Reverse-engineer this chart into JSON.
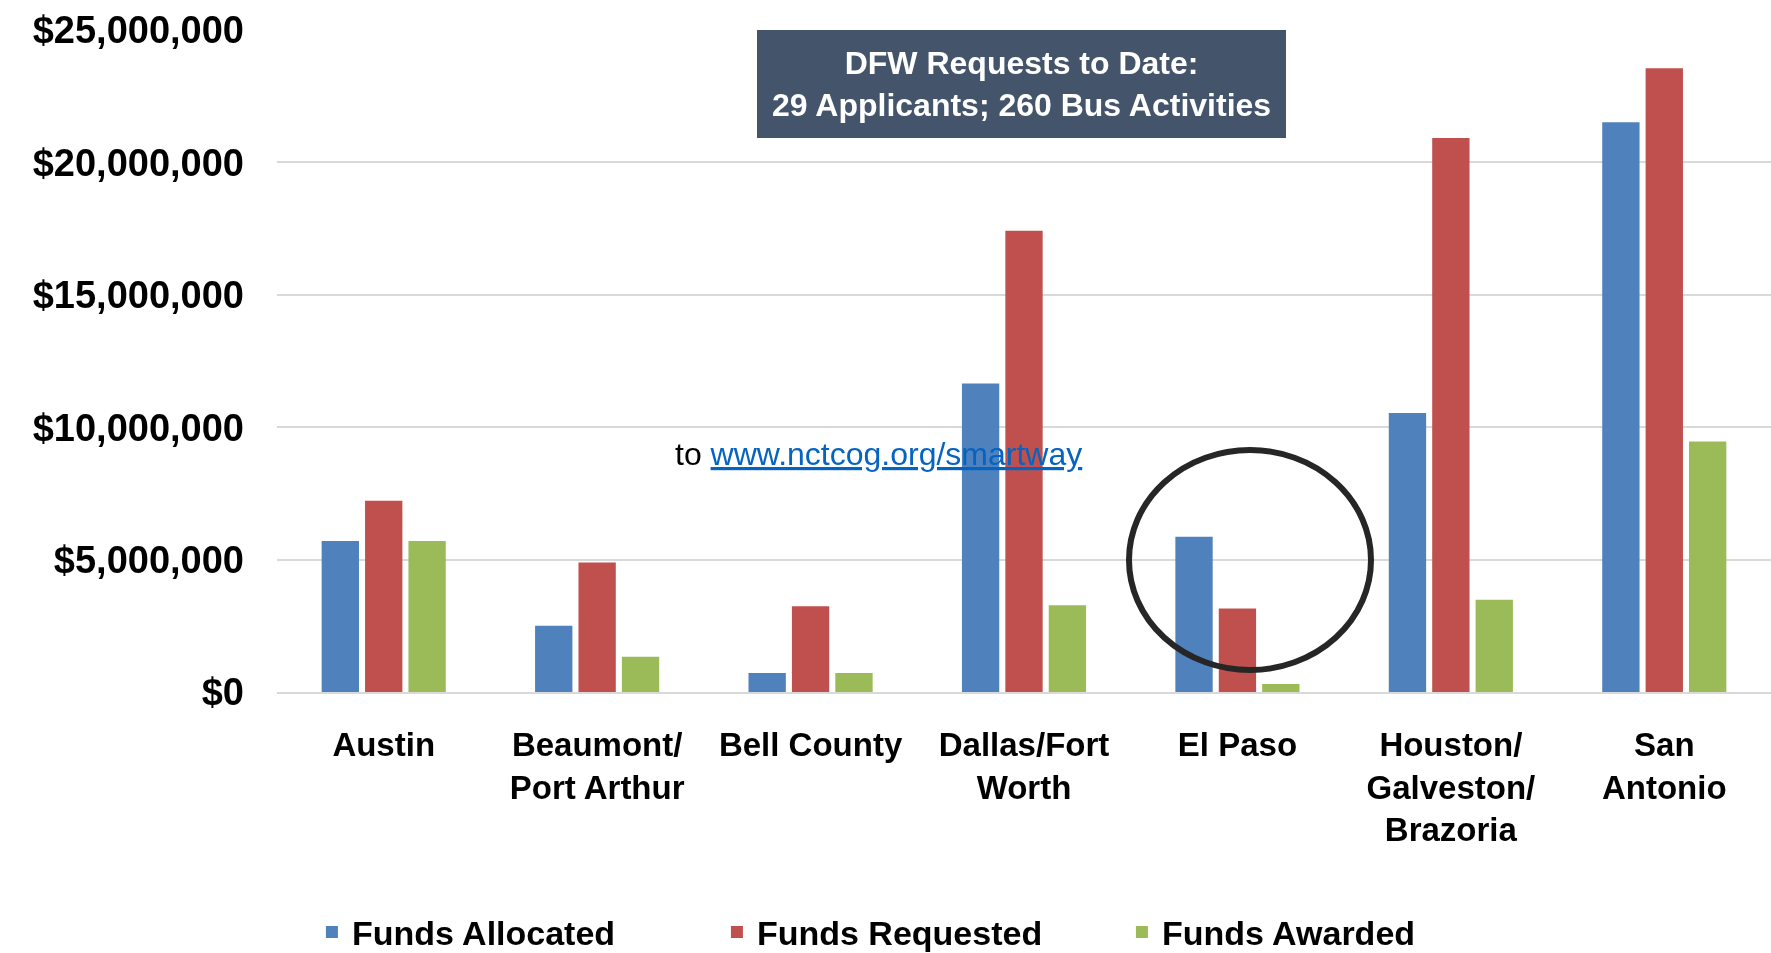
{
  "chart_data": {
    "type": "bar",
    "categories": [
      "Austin",
      "Beaumont/\nPort Arthur",
      "Bell County",
      "Dallas/Fort\nWorth",
      "El Paso",
      "Houston/\nGalveston/\nBrazoria",
      "San\nAntonio"
    ],
    "series": [
      {
        "name": "Funds Allocated",
        "color": "#4f81bd",
        "values": [
          5700000,
          2500000,
          720000,
          11650000,
          5860000,
          10540000,
          21520000
        ]
      },
      {
        "name": "Funds Requested",
        "color": "#c0504d",
        "values": [
          7220000,
          4890000,
          3240000,
          17420000,
          3150000,
          20920000,
          23560000
        ]
      },
      {
        "name": "Funds Awarded",
        "color": "#9bbb59",
        "values": [
          5700000,
          1330000,
          720000,
          3280000,
          300000,
          3480000,
          9460000
        ]
      }
    ],
    "ylim": [
      0,
      25000000
    ],
    "yticks": [
      {
        "value": 0,
        "label": "$0"
      },
      {
        "value": 5000000,
        "label": "$5,000,000"
      },
      {
        "value": 10000000,
        "label": "$10,000,000"
      },
      {
        "value": 15000000,
        "label": "$15,000,000"
      },
      {
        "value": 20000000,
        "label": "$20,000,000"
      },
      {
        "value": 25000000,
        "label": "$25,000,000"
      }
    ],
    "grid": "y",
    "legend": "bottom",
    "annotations": [
      "DFW Requests to Date:\n29 Applicants; 260 Bus Activities",
      "to www.nctcog.org/smartway"
    ]
  }
}
